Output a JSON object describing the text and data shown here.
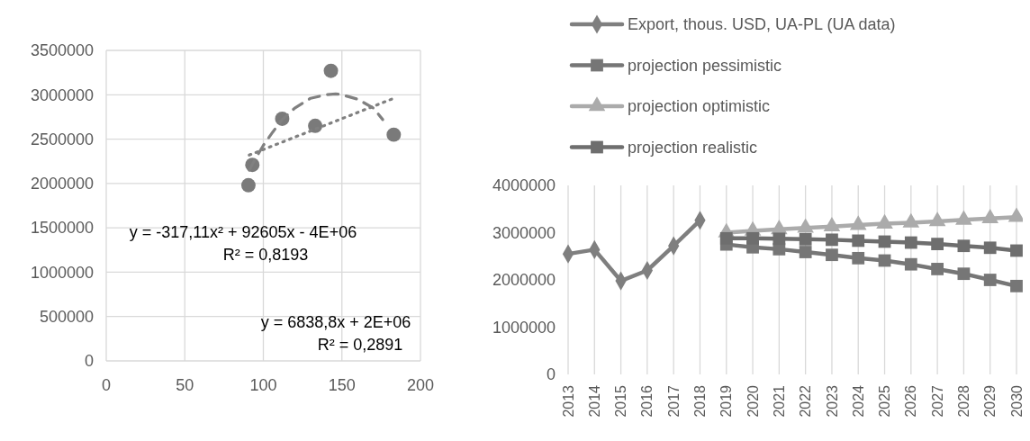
{
  "chart_data": [
    {
      "type": "scatter",
      "xlim": [
        0,
        200
      ],
      "xticks": [
        0,
        50,
        100,
        150,
        200
      ],
      "ylim": [
        0,
        3500000
      ],
      "yticks": [
        0,
        500000,
        1000000,
        1500000,
        2000000,
        2500000,
        3000000,
        3500000
      ],
      "grid": true,
      "x": [
        90.5,
        93,
        112,
        133,
        143,
        183
      ],
      "series": [
        {
          "color": "#7a7a7a",
          "marker": "circle",
          "values": [
            1980000,
            2210000,
            2730000,
            2650000,
            3270000,
            2550000
          ]
        },
        {
          "type": "line",
          "color": "#808080",
          "line_style": "dashed",
          "marker": "none",
          "x": [
            91,
            95,
            100,
            106,
            112,
            120,
            130,
            140,
            146,
            150,
            160,
            170,
            176
          ],
          "values": [
            2150000,
            2280000,
            2430000,
            2580000,
            2720000,
            2850000,
            2960000,
            3000000,
            3010000,
            3000000,
            2950000,
            2850000,
            2720000
          ]
        },
        {
          "type": "line",
          "color": "#808080",
          "line_style": "dotted",
          "marker": "none",
          "x": [
            91,
            183
          ],
          "values": [
            2320000,
            2960000
          ]
        }
      ],
      "annotations": [
        "y = -317,11x² + 92605x - 4E+06",
        "R² = 0,8193",
        "y = 6838,8x + 2E+06",
        "R² = 0,2891"
      ]
    },
    {
      "type": "line",
      "categories": [
        "2013",
        "2014",
        "2015",
        "2016",
        "2017",
        "2018",
        "2019",
        "2020",
        "2021",
        "2022",
        "2023",
        "2024",
        "2025",
        "2026",
        "2027",
        "2028",
        "2029",
        "2030"
      ],
      "ylim": [
        0,
        4000000
      ],
      "yticks": [
        0,
        1000000,
        2000000,
        3000000,
        4000000
      ],
      "grid": "x",
      "legend": "top",
      "series": [
        {
          "name": "Export, thous. USD, UA-PL (UA data)",
          "color": "#7f7f7f",
          "marker": "diamond",
          "values": [
            2550000,
            2640000,
            1980000,
            2200000,
            2720000,
            3260000,
            null,
            null,
            null,
            null,
            null,
            null,
            null,
            null,
            null,
            null,
            null,
            null
          ]
        },
        {
          "name": "projection pessimistic",
          "color": "#767676",
          "marker": "square",
          "values": [
            null,
            null,
            null,
            null,
            null,
            null,
            2750000,
            2690000,
            2650000,
            2590000,
            2530000,
            2460000,
            2410000,
            2330000,
            2230000,
            2130000,
            2000000,
            1870000
          ]
        },
        {
          "name": "projection optimistic",
          "color": "#ababab",
          "marker": "triangle",
          "values": [
            null,
            null,
            null,
            null,
            null,
            null,
            3000000,
            3040000,
            3070000,
            3100000,
            3130000,
            3160000,
            3190000,
            3210000,
            3240000,
            3270000,
            3300000,
            3330000
          ]
        },
        {
          "name": "projection realistic",
          "color": "#6e6e6e",
          "marker": "square",
          "values": [
            null,
            null,
            null,
            null,
            null,
            null,
            2880000,
            2880000,
            2870000,
            2860000,
            2850000,
            2830000,
            2810000,
            2790000,
            2760000,
            2720000,
            2680000,
            2620000
          ]
        }
      ]
    }
  ]
}
